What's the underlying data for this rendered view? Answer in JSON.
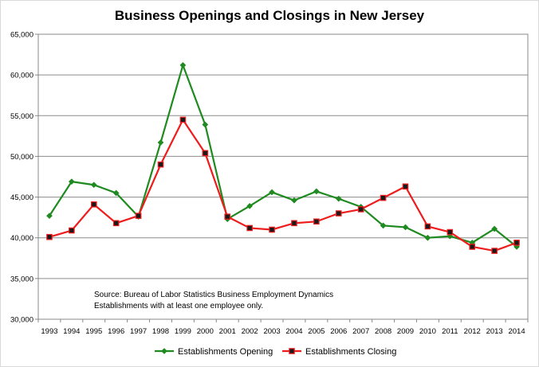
{
  "chart_data": {
    "type": "line",
    "title": "Business Openings and Closings in New Jersey",
    "xlabel": "",
    "ylabel": "",
    "categories": [
      "1993",
      "1994",
      "1995",
      "1996",
      "1997",
      "1998",
      "1999",
      "2000",
      "2001",
      "2002",
      "2003",
      "2004",
      "2005",
      "2006",
      "2007",
      "2008",
      "2009",
      "2010",
      "2011",
      "2012",
      "2013",
      "2014"
    ],
    "ylim": [
      30000,
      65000
    ],
    "yticks": [
      "30,000",
      "35,000",
      "40,000",
      "45,000",
      "50,000",
      "55,000",
      "60,000",
      "65,000"
    ],
    "series": [
      {
        "name": "Establishments Opening",
        "color": "#1f8a1f",
        "marker": "diamond",
        "values": [
          42700,
          46900,
          46500,
          45500,
          42600,
          51700,
          61200,
          53900,
          42300,
          43900,
          45600,
          44600,
          45700,
          44800,
          43800,
          41500,
          41300,
          40000,
          40200,
          39400,
          41100,
          38900
        ]
      },
      {
        "name": "Establishments Closing",
        "color": "#ee1c1c",
        "marker": "square",
        "values": [
          40100,
          40900,
          44100,
          41800,
          42700,
          49000,
          54500,
          50400,
          42600,
          41200,
          41000,
          41800,
          42000,
          43000,
          43500,
          44900,
          46300,
          41400,
          40700,
          38900,
          38400,
          39400
        ]
      }
    ],
    "grid": "horizontal",
    "legend": "bottom-center",
    "annotation": [
      "Source:  Bureau of Labor Statistics Business Employment Dynamics",
      "Establishments with at least one employee only."
    ]
  }
}
